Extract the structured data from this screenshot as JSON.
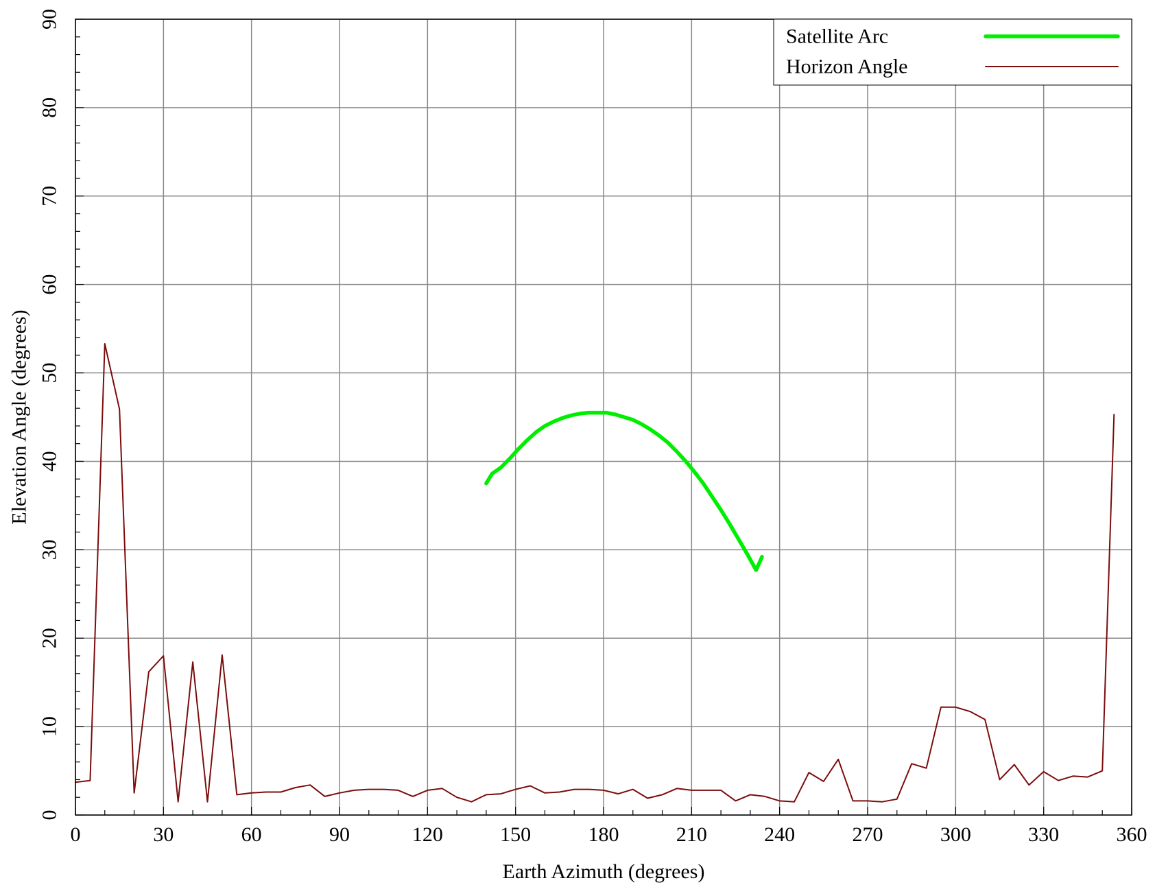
{
  "chart_data": {
    "type": "line",
    "xlabel": "Earth Azimuth (degrees)",
    "ylabel": "Elevation Angle (degrees)",
    "xlim": [
      0,
      360
    ],
    "ylim": [
      0,
      90
    ],
    "xticks": [
      0,
      30,
      60,
      90,
      120,
      150,
      180,
      210,
      240,
      270,
      300,
      330,
      360
    ],
    "yticks": [
      0,
      10,
      20,
      30,
      40,
      50,
      60,
      70,
      80,
      90
    ],
    "x_minor_step": 10,
    "y_minor_step": 2,
    "grid": true,
    "legend_position": "top-right",
    "series": [
      {
        "name": "Satellite Arc",
        "color": "#00ee00",
        "x": [
          140,
          142,
          145,
          148,
          151,
          154,
          157,
          160,
          163,
          166,
          169,
          172,
          175,
          178,
          181,
          184,
          187,
          190,
          193,
          196,
          199,
          202,
          205,
          208,
          211,
          214,
          217,
          220,
          223,
          226,
          229,
          232,
          234
        ],
        "y": [
          37.5,
          38.6,
          39.3,
          40.3,
          41.4,
          42.4,
          43.3,
          44.0,
          44.5,
          44.9,
          45.2,
          45.4,
          45.5,
          45.5,
          45.5,
          45.3,
          45.0,
          44.7,
          44.2,
          43.6,
          42.9,
          42.1,
          41.1,
          40.0,
          38.8,
          37.5,
          36.0,
          34.5,
          32.9,
          31.2,
          29.5,
          27.7,
          29.2
        ]
      },
      {
        "name": "Horizon Angle",
        "color": "#7b0c0c",
        "x": [
          0,
          5,
          10,
          15,
          20,
          25,
          30,
          35,
          40,
          45,
          50,
          55,
          60,
          65,
          70,
          75,
          80,
          85,
          90,
          95,
          100,
          105,
          110,
          115,
          120,
          125,
          130,
          135,
          140,
          145,
          150,
          155,
          160,
          165,
          170,
          175,
          180,
          185,
          190,
          195,
          200,
          205,
          210,
          215,
          220,
          225,
          230,
          235,
          240,
          245,
          250,
          255,
          260,
          265,
          270,
          275,
          280,
          285,
          290,
          295,
          300,
          305,
          310,
          315,
          320,
          325,
          330,
          335,
          340,
          345,
          350,
          354
        ],
        "y": [
          3.7,
          3.9,
          53.3,
          45.9,
          2.5,
          16.2,
          18.0,
          1.5,
          17.3,
          1.5,
          18.1,
          2.3,
          2.5,
          2.6,
          2.6,
          3.1,
          3.4,
          2.1,
          2.5,
          2.8,
          2.9,
          2.9,
          2.8,
          2.1,
          2.8,
          3.0,
          2.0,
          1.5,
          2.3,
          2.4,
          2.9,
          3.3,
          2.5,
          2.6,
          2.9,
          2.9,
          2.8,
          2.4,
          2.9,
          1.9,
          2.3,
          3.0,
          2.8,
          2.8,
          2.8,
          1.6,
          2.3,
          2.1,
          1.6,
          1.5,
          4.8,
          3.8,
          6.3,
          1.6,
          1.6,
          1.5,
          1.8,
          5.8,
          5.3,
          12.2,
          12.2,
          11.7,
          10.8,
          4.0,
          5.7,
          3.4,
          4.9,
          3.9,
          4.4,
          4.3,
          5.0,
          45.3
        ]
      }
    ]
  }
}
